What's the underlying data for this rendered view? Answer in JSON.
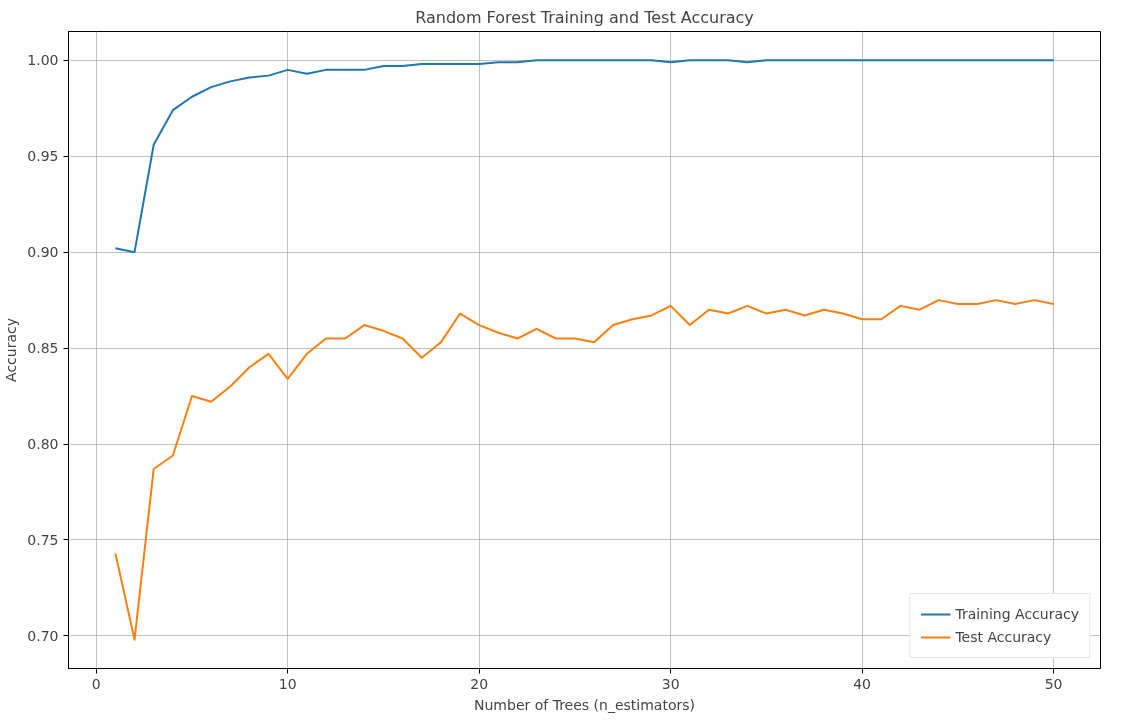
{
  "chart_data": {
    "type": "line",
    "title": "Random Forest Training and Test Accuracy",
    "xlabel": "Number of Trees (n_estimators)",
    "ylabel": "Accuracy",
    "x": [
      1,
      2,
      3,
      4,
      5,
      6,
      7,
      8,
      9,
      10,
      11,
      12,
      13,
      14,
      15,
      16,
      17,
      18,
      19,
      20,
      21,
      22,
      23,
      24,
      25,
      26,
      27,
      28,
      29,
      30,
      31,
      32,
      33,
      34,
      35,
      36,
      37,
      38,
      39,
      40,
      41,
      42,
      43,
      44,
      45,
      46,
      47,
      48,
      49,
      50
    ],
    "series": [
      {
        "name": "Training Accuracy",
        "color": "#1f77b4",
        "values": [
          0.902,
          0.9,
          0.956,
          0.974,
          0.981,
          0.986,
          0.989,
          0.991,
          0.992,
          0.995,
          0.993,
          0.995,
          0.995,
          0.995,
          0.997,
          0.997,
          0.998,
          0.998,
          0.998,
          0.998,
          0.999,
          0.999,
          1.0,
          1.0,
          1.0,
          1.0,
          1.0,
          1.0,
          1.0,
          0.999,
          1.0,
          1.0,
          1.0,
          0.999,
          1.0,
          1.0,
          1.0,
          1.0,
          1.0,
          1.0,
          1.0,
          1.0,
          1.0,
          1.0,
          1.0,
          1.0,
          1.0,
          1.0,
          1.0,
          1.0
        ]
      },
      {
        "name": "Test Accuracy",
        "color": "#ff7f0e",
        "values": [
          0.743,
          0.698,
          0.787,
          0.794,
          0.825,
          0.822,
          0.83,
          0.84,
          0.847,
          0.834,
          0.847,
          0.855,
          0.855,
          0.862,
          0.859,
          0.855,
          0.845,
          0.853,
          0.868,
          0.862,
          0.858,
          0.855,
          0.86,
          0.855,
          0.855,
          0.853,
          0.862,
          0.865,
          0.867,
          0.872,
          0.862,
          0.87,
          0.868,
          0.872,
          0.868,
          0.87,
          0.867,
          0.87,
          0.868,
          0.865,
          0.865,
          0.872,
          0.87,
          0.875,
          0.873,
          0.873,
          0.875,
          0.873,
          0.875,
          0.873
        ]
      }
    ],
    "xlim": [
      -1.45,
      52.45
    ],
    "ylim": [
      0.683,
      1.015
    ],
    "xticks": [
      0,
      10,
      20,
      30,
      40,
      50
    ],
    "yticks": [
      {
        "value": 0.7,
        "label": "0.70"
      },
      {
        "value": 0.75,
        "label": "0.75"
      },
      {
        "value": 0.8,
        "label": "0.80"
      },
      {
        "value": 0.85,
        "label": "0.85"
      },
      {
        "value": 0.9,
        "label": "0.90"
      },
      {
        "value": 0.95,
        "label": "0.95"
      },
      {
        "value": 1.0,
        "label": "1.00"
      }
    ],
    "grid": true,
    "legend": "bottom right",
    "line_style": "solid",
    "marker": "none"
  }
}
